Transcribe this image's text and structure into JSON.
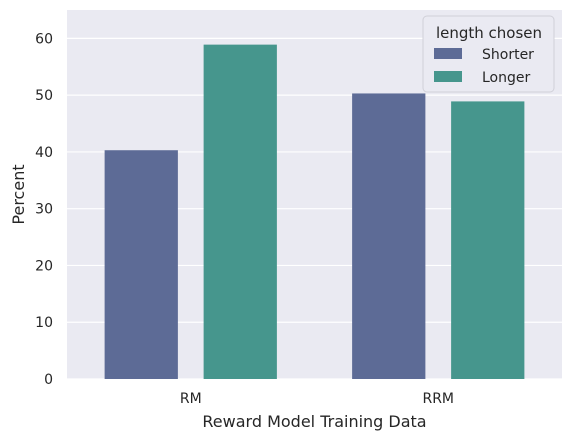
{
  "chart_data": {
    "type": "bar",
    "categories": [
      "RM",
      "RRM"
    ],
    "series": [
      {
        "name": "Shorter",
        "values": [
          40.3,
          50.3
        ],
        "color": "#5d6b96"
      },
      {
        "name": "Longer",
        "values": [
          58.9,
          48.9
        ],
        "color": "#46968d"
      }
    ],
    "xlabel": "Reward Model Training Data",
    "ylabel": "Percent",
    "ylim": [
      0,
      65
    ],
    "yticks": [
      "0",
      "10",
      "20",
      "30",
      "40",
      "50",
      "60"
    ],
    "grid": true,
    "legend": {
      "title": "length chosen",
      "placement": "top-right"
    },
    "background_color": "#eaeaf2",
    "grid_color": "#ffffff"
  }
}
